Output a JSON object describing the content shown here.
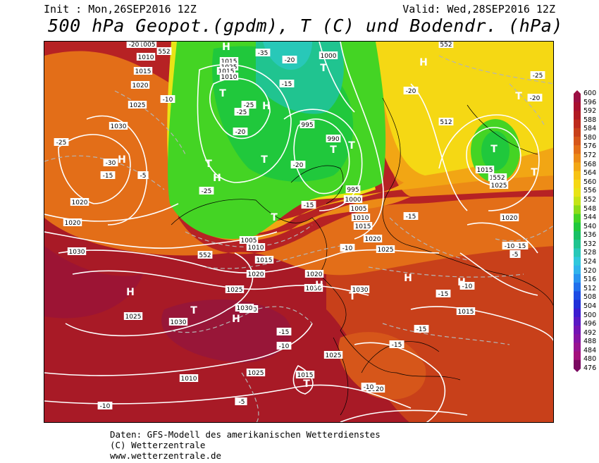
{
  "header": {
    "init": "Init : Mon,26SEP2016 12Z",
    "valid": "Valid: Wed,28SEP2016 12Z",
    "title": "500 hPa Geopot.(gpdm), T (C) und Bodendr. (hPa)"
  },
  "legend": {
    "levels": [
      "600",
      "596",
      "592",
      "588",
      "584",
      "580",
      "576",
      "572",
      "568",
      "564",
      "560",
      "556",
      "552",
      "548",
      "544",
      "540",
      "536",
      "532",
      "528",
      "524",
      "520",
      "516",
      "512",
      "508",
      "504",
      "500",
      "496",
      "492",
      "488",
      "484",
      "480",
      "476"
    ],
    "colors": [
      "#9c1044",
      "#a81030",
      "#b01a22",
      "#bd2a1c",
      "#c8401a",
      "#d6561a",
      "#e36e18",
      "#ec8a16",
      "#f2a614",
      "#f7c214",
      "#f5d814",
      "#e8e416",
      "#c4e416",
      "#8cdc18",
      "#44d424",
      "#20c83c",
      "#18c064",
      "#20c490",
      "#28c8b8",
      "#30c8dc",
      "#30b4ec",
      "#2894f0",
      "#2070ec",
      "#1c4ce4",
      "#2030d8",
      "#3c1cd0",
      "#5a18c4",
      "#7414b4",
      "#8614a4",
      "#981490",
      "#a4107c",
      "#7a0860"
    ]
  },
  "map": {
    "isobar_labels": [
      "1005",
      "1010",
      "1015",
      "1020",
      "1025",
      "1030",
      "1000",
      "995",
      "990",
      "1015",
      "1025",
      "1015",
      "1010",
      "1020",
      "1030",
      "1020",
      "1025",
      "1030",
      "1025",
      "1020",
      "1015",
      "1010",
      "1005",
      "1000",
      "995",
      "1005",
      "1010",
      "1015",
      "1020",
      "1025",
      "1030",
      "1030",
      "1020",
      "1025",
      "1015",
      "1020",
      "1025",
      "1010",
      "1015",
      "1020",
      "1025",
      "1020",
      "1015",
      "1030",
      "1030"
    ],
    "temp_labels": [
      "-20",
      "-15",
      "-10",
      "-5",
      "-25",
      "-30",
      "-35",
      "-20",
      "-15",
      "-25",
      "-20",
      "-25",
      "-25",
      "-20",
      "-15",
      "-10",
      "-15",
      "-20",
      "-25",
      "-15",
      "-10",
      "-20",
      "-15",
      "-10",
      "-5",
      "-10",
      "-5",
      "-15",
      "-15",
      "-15",
      "-15",
      "-10",
      "-10",
      "-5"
    ],
    "pressure_centers": [
      "H",
      "H",
      "H",
      "H",
      "H",
      "H",
      "H",
      "H",
      "H",
      "H",
      "T",
      "T",
      "T",
      "T",
      "T",
      "T",
      "T",
      "T",
      "T",
      "T",
      "T",
      "T",
      "T"
    ],
    "height_labels": [
      "552",
      "552",
      "512",
      "552",
      "552"
    ]
  },
  "footer": {
    "line1": "Daten: GFS-Modell des amerikanischen Wetterdienstes",
    "line2": "(C) Wetterzentrale",
    "line3": "www.wetterzentrale.de"
  }
}
